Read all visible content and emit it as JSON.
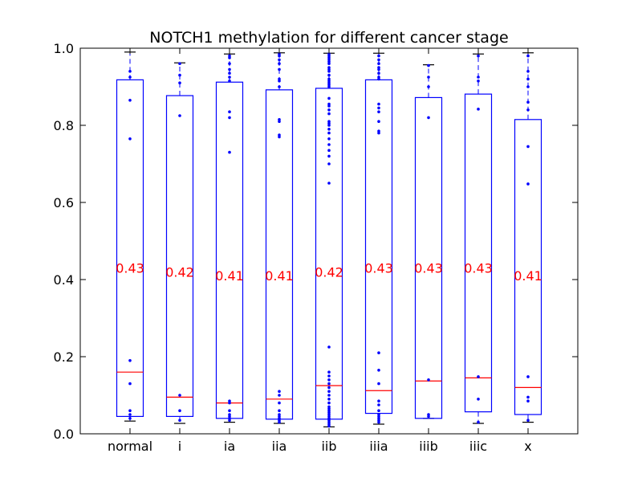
{
  "chart_data": {
    "type": "box",
    "title": "NOTCH1 methylation for different cancer stage",
    "xlabel": "",
    "ylabel": "",
    "ylim": [
      0,
      1.0
    ],
    "yticks": [
      "0.0",
      "0.2",
      "0.4",
      "0.6",
      "0.8",
      "1.0"
    ],
    "categories": [
      "normal",
      "i",
      "ia",
      "iia",
      "iib",
      "iiia",
      "iiib",
      "iiic",
      "x"
    ],
    "colors": {
      "box": "#0000ff",
      "median": "#ff0000",
      "label": "#ff0000",
      "axis": "#000000"
    },
    "boxes": [
      {
        "category": "normal",
        "whislo": 0.033,
        "q1": 0.045,
        "med": 0.16,
        "q3": 0.918,
        "whishi": 0.99,
        "mean_label": "0.43",
        "mean": 0.43,
        "fliers": [
          0.04,
          0.05,
          0.06,
          0.13,
          0.19,
          0.765,
          0.865,
          0.925,
          0.94
        ]
      },
      {
        "category": "i",
        "whislo": 0.027,
        "q1": 0.045,
        "med": 0.095,
        "q3": 0.877,
        "whishi": 0.962,
        "mean_label": "0.42",
        "mean": 0.42,
        "fliers": [
          0.035,
          0.06,
          0.1,
          0.825,
          0.91,
          0.93,
          0.96
        ]
      },
      {
        "category": "ia",
        "whislo": 0.03,
        "q1": 0.04,
        "med": 0.08,
        "q3": 0.912,
        "whishi": 0.985,
        "mean_label": "0.41",
        "mean": 0.41,
        "fliers": [
          0.035,
          0.04,
          0.045,
          0.05,
          0.06,
          0.08,
          0.085,
          0.73,
          0.82,
          0.835,
          0.915,
          0.925,
          0.935,
          0.945,
          0.96,
          0.975,
          0.98
        ]
      },
      {
        "category": "iia",
        "whislo": 0.027,
        "q1": 0.038,
        "med": 0.09,
        "q3": 0.892,
        "whishi": 0.988,
        "mean_label": "0.41",
        "mean": 0.41,
        "fliers": [
          0.03,
          0.035,
          0.04,
          0.045,
          0.05,
          0.06,
          0.08,
          0.1,
          0.11,
          0.77,
          0.775,
          0.81,
          0.815,
          0.9,
          0.915,
          0.92,
          0.945,
          0.96,
          0.97,
          0.98,
          0.985
        ]
      },
      {
        "category": "iib",
        "whislo": 0.018,
        "q1": 0.038,
        "med": 0.125,
        "q3": 0.896,
        "whishi": 0.987,
        "mean_label": "0.42",
        "mean": 0.42,
        "fliers": [
          0.02,
          0.025,
          0.03,
          0.035,
          0.04,
          0.045,
          0.05,
          0.055,
          0.06,
          0.065,
          0.07,
          0.08,
          0.09,
          0.1,
          0.11,
          0.12,
          0.13,
          0.14,
          0.15,
          0.16,
          0.225,
          0.65,
          0.7,
          0.72,
          0.735,
          0.75,
          0.765,
          0.78,
          0.79,
          0.8,
          0.805,
          0.81,
          0.83,
          0.84,
          0.85,
          0.855,
          0.87,
          0.9,
          0.905,
          0.91,
          0.915,
          0.92,
          0.93,
          0.94,
          0.945,
          0.95,
          0.96,
          0.965,
          0.97,
          0.975,
          0.98,
          0.985
        ]
      },
      {
        "category": "iiia",
        "whislo": 0.025,
        "q1": 0.053,
        "med": 0.112,
        "q3": 0.918,
        "whishi": 0.987,
        "mean_label": "0.43",
        "mean": 0.43,
        "fliers": [
          0.03,
          0.035,
          0.04,
          0.045,
          0.05,
          0.06,
          0.075,
          0.085,
          0.13,
          0.165,
          0.21,
          0.78,
          0.785,
          0.81,
          0.835,
          0.845,
          0.855,
          0.92,
          0.925,
          0.935,
          0.945,
          0.95,
          0.96,
          0.97,
          0.98
        ]
      },
      {
        "category": "iiib",
        "whislo": 0.04,
        "q1": 0.04,
        "med": 0.137,
        "q3": 0.872,
        "whishi": 0.957,
        "mean_label": "0.43",
        "mean": 0.43,
        "fliers": [
          0.045,
          0.05,
          0.14,
          0.82,
          0.9,
          0.925,
          0.955
        ]
      },
      {
        "category": "iiic",
        "whislo": 0.027,
        "q1": 0.057,
        "med": 0.145,
        "q3": 0.881,
        "whishi": 0.985,
        "mean_label": "0.43",
        "mean": 0.43,
        "fliers": [
          0.03,
          0.09,
          0.148,
          0.842,
          0.915,
          0.925,
          0.98
        ]
      },
      {
        "category": "x",
        "whislo": 0.03,
        "q1": 0.05,
        "med": 0.12,
        "q3": 0.815,
        "whishi": 0.988,
        "mean_label": "0.41",
        "mean": 0.41,
        "fliers": [
          0.035,
          0.085,
          0.095,
          0.148,
          0.648,
          0.745,
          0.84,
          0.86,
          0.9,
          0.92,
          0.94,
          0.98
        ]
      }
    ]
  }
}
